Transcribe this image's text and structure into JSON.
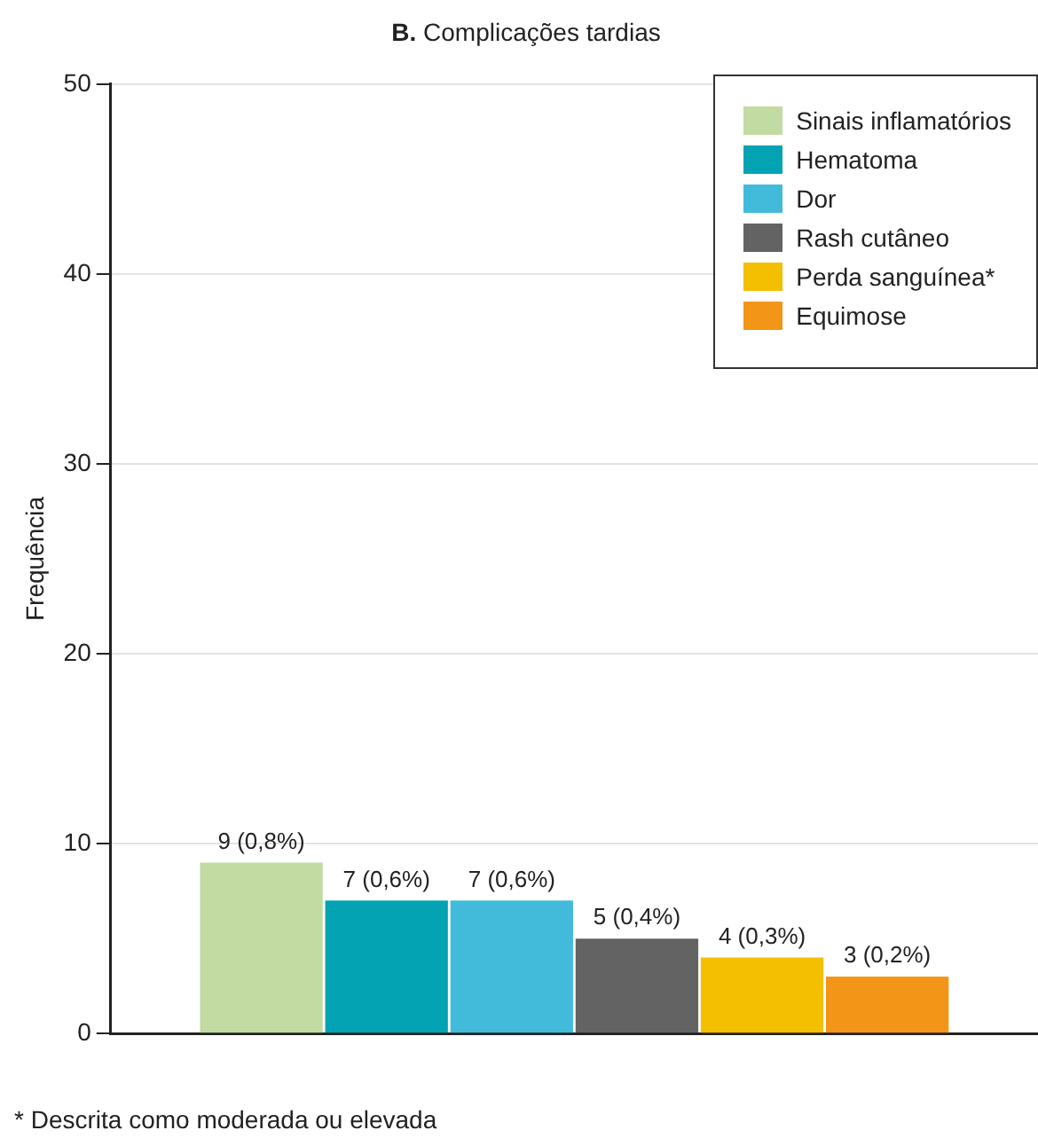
{
  "chart_data": {
    "type": "bar",
    "title": "B. Complicações tardias",
    "ylabel": "Frequência",
    "categories": [
      null
    ],
    "series": [
      {
        "name": "Sinais inflamatórios",
        "color": "#c1dba3",
        "values": [
          9
        ],
        "value_labels": [
          "9 (0,8%)"
        ]
      },
      {
        "name": "Hematoma",
        "color": "#03a3b3",
        "values": [
          7
        ],
        "value_labels": [
          "7 (0,6%)"
        ]
      },
      {
        "name": "Dor",
        "color": "#42bbdb",
        "values": [
          7
        ],
        "value_labels": [
          "7 (0,6%)"
        ]
      },
      {
        "name": "Rash cutâneo",
        "color": "#636363",
        "values": [
          5
        ],
        "value_labels": [
          "5 (0,4%)"
        ]
      },
      {
        "name": "Perda sanguínea*",
        "color": "#f4bf00",
        "values": [
          4
        ],
        "value_labels": [
          "4 (0,3%)"
        ]
      },
      {
        "name": "Equimose",
        "color": "#f39517",
        "values": [
          3
        ],
        "value_labels": [
          "3 (0,2%)"
        ]
      }
    ],
    "ylim": [
      0,
      50
    ],
    "yticks": [
      0,
      10,
      20,
      30,
      40,
      50
    ],
    "grid": "y",
    "legend": "top right",
    "annotations": [
      "* Descrita como moderada ou elevada"
    ]
  }
}
